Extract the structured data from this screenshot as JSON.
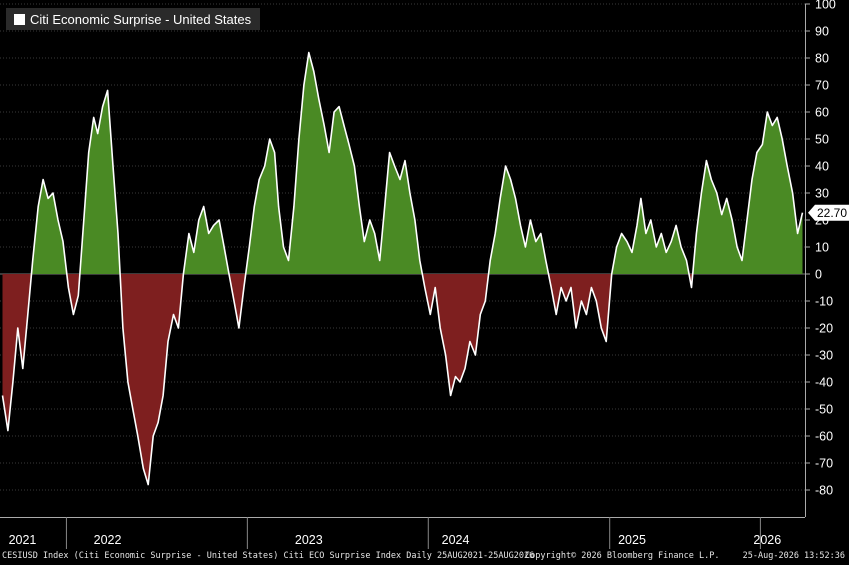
{
  "chart_data": {
    "type": "area",
    "series": [
      {
        "name": "Citi Economic Surprise - United States",
        "color": "#ffffff",
        "positive_fill": "#4a8a24",
        "negative_fill": "#7e1f1f",
        "points": [
          [
            "2021-08-25",
            -45
          ],
          [
            "2021-09-05",
            -58
          ],
          [
            "2021-09-15",
            -40
          ],
          [
            "2021-09-25",
            -20
          ],
          [
            "2021-10-05",
            -35
          ],
          [
            "2021-10-15",
            -15
          ],
          [
            "2021-10-25",
            5
          ],
          [
            "2021-11-05",
            25
          ],
          [
            "2021-11-15",
            35
          ],
          [
            "2021-11-25",
            28
          ],
          [
            "2021-12-05",
            30
          ],
          [
            "2021-12-15",
            20
          ],
          [
            "2021-12-25",
            12
          ],
          [
            "2022-01-05",
            -5
          ],
          [
            "2022-01-15",
            -15
          ],
          [
            "2022-01-25",
            -8
          ],
          [
            "2022-02-05",
            20
          ],
          [
            "2022-02-15",
            45
          ],
          [
            "2022-02-25",
            58
          ],
          [
            "2022-03-05",
            52
          ],
          [
            "2022-03-15",
            62
          ],
          [
            "2022-03-25",
            68
          ],
          [
            "2022-04-05",
            40
          ],
          [
            "2022-04-15",
            15
          ],
          [
            "2022-04-25",
            -20
          ],
          [
            "2022-05-05",
            -40
          ],
          [
            "2022-05-15",
            -50
          ],
          [
            "2022-05-25",
            -60
          ],
          [
            "2022-06-05",
            -72
          ],
          [
            "2022-06-15",
            -78
          ],
          [
            "2022-06-25",
            -60
          ],
          [
            "2022-07-05",
            -55
          ],
          [
            "2022-07-15",
            -45
          ],
          [
            "2022-07-25",
            -25
          ],
          [
            "2022-08-05",
            -15
          ],
          [
            "2022-08-15",
            -20
          ],
          [
            "2022-08-25",
            0
          ],
          [
            "2022-09-05",
            15
          ],
          [
            "2022-09-15",
            8
          ],
          [
            "2022-09-25",
            20
          ],
          [
            "2022-10-05",
            25
          ],
          [
            "2022-10-15",
            15
          ],
          [
            "2022-10-25",
            18
          ],
          [
            "2022-11-05",
            20
          ],
          [
            "2022-11-15",
            10
          ],
          [
            "2022-11-25",
            0
          ],
          [
            "2022-12-05",
            -10
          ],
          [
            "2022-12-15",
            -20
          ],
          [
            "2022-12-25",
            -5
          ],
          [
            "2023-01-05",
            10
          ],
          [
            "2023-01-15",
            25
          ],
          [
            "2023-01-25",
            35
          ],
          [
            "2023-02-05",
            40
          ],
          [
            "2023-02-15",
            50
          ],
          [
            "2023-02-25",
            45
          ],
          [
            "2023-03-05",
            25
          ],
          [
            "2023-03-15",
            10
          ],
          [
            "2023-03-25",
            5
          ],
          [
            "2023-04-05",
            25
          ],
          [
            "2023-04-15",
            50
          ],
          [
            "2023-04-25",
            70
          ],
          [
            "2023-05-05",
            82
          ],
          [
            "2023-05-15",
            75
          ],
          [
            "2023-05-25",
            65
          ],
          [
            "2023-06-05",
            55
          ],
          [
            "2023-06-15",
            45
          ],
          [
            "2023-06-25",
            60
          ],
          [
            "2023-07-05",
            62
          ],
          [
            "2023-07-15",
            55
          ],
          [
            "2023-07-25",
            48
          ],
          [
            "2023-08-05",
            40
          ],
          [
            "2023-08-15",
            25
          ],
          [
            "2023-08-25",
            12
          ],
          [
            "2023-09-05",
            20
          ],
          [
            "2023-09-15",
            15
          ],
          [
            "2023-09-25",
            5
          ],
          [
            "2023-10-05",
            25
          ],
          [
            "2023-10-15",
            45
          ],
          [
            "2023-10-25",
            40
          ],
          [
            "2023-11-05",
            35
          ],
          [
            "2023-11-15",
            42
          ],
          [
            "2023-11-25",
            30
          ],
          [
            "2023-12-05",
            20
          ],
          [
            "2023-12-15",
            5
          ],
          [
            "2023-12-25",
            -5
          ],
          [
            "2024-01-05",
            -15
          ],
          [
            "2024-01-15",
            -5
          ],
          [
            "2024-01-25",
            -20
          ],
          [
            "2024-02-05",
            -30
          ],
          [
            "2024-02-15",
            -45
          ],
          [
            "2024-02-25",
            -38
          ],
          [
            "2024-03-05",
            -40
          ],
          [
            "2024-03-15",
            -35
          ],
          [
            "2024-03-25",
            -25
          ],
          [
            "2024-04-05",
            -30
          ],
          [
            "2024-04-15",
            -15
          ],
          [
            "2024-04-25",
            -10
          ],
          [
            "2024-05-05",
            5
          ],
          [
            "2024-05-15",
            15
          ],
          [
            "2024-05-25",
            28
          ],
          [
            "2024-06-05",
            40
          ],
          [
            "2024-06-15",
            35
          ],
          [
            "2024-06-25",
            28
          ],
          [
            "2024-07-05",
            18
          ],
          [
            "2024-07-15",
            10
          ],
          [
            "2024-07-25",
            20
          ],
          [
            "2024-08-05",
            12
          ],
          [
            "2024-08-15",
            15
          ],
          [
            "2024-08-25",
            5
          ],
          [
            "2024-09-05",
            -5
          ],
          [
            "2024-09-15",
            -15
          ],
          [
            "2024-09-25",
            -5
          ],
          [
            "2024-10-05",
            -10
          ],
          [
            "2024-10-15",
            -5
          ],
          [
            "2024-10-25",
            -20
          ],
          [
            "2024-11-05",
            -10
          ],
          [
            "2024-11-15",
            -15
          ],
          [
            "2024-11-25",
            -5
          ],
          [
            "2024-12-05",
            -10
          ],
          [
            "2024-12-15",
            -20
          ],
          [
            "2024-12-25",
            -25
          ],
          [
            "2025-01-05",
            0
          ],
          [
            "2025-01-15",
            10
          ],
          [
            "2025-01-25",
            15
          ],
          [
            "2025-02-05",
            12
          ],
          [
            "2025-02-15",
            8
          ],
          [
            "2025-02-25",
            18
          ],
          [
            "2025-03-05",
            28
          ],
          [
            "2025-03-15",
            15
          ],
          [
            "2025-03-25",
            20
          ],
          [
            "2025-04-05",
            10
          ],
          [
            "2025-04-15",
            15
          ],
          [
            "2025-04-25",
            8
          ],
          [
            "2025-05-05",
            12
          ],
          [
            "2025-05-15",
            18
          ],
          [
            "2025-05-25",
            10
          ],
          [
            "2025-06-05",
            5
          ],
          [
            "2025-06-15",
            -5
          ],
          [
            "2025-06-25",
            15
          ],
          [
            "2025-07-05",
            30
          ],
          [
            "2025-07-15",
            42
          ],
          [
            "2025-07-25",
            35
          ],
          [
            "2025-08-05",
            30
          ],
          [
            "2025-08-15",
            22
          ],
          [
            "2025-08-25",
            28
          ],
          [
            "2025-09-05",
            20
          ],
          [
            "2025-09-15",
            10
          ],
          [
            "2025-09-25",
            5
          ],
          [
            "2025-10-05",
            20
          ],
          [
            "2025-10-15",
            35
          ],
          [
            "2025-10-25",
            45
          ],
          [
            "2025-11-05",
            48
          ],
          [
            "2025-11-15",
            60
          ],
          [
            "2025-11-25",
            55
          ],
          [
            "2025-12-05",
            58
          ],
          [
            "2025-12-15",
            50
          ],
          [
            "2025-12-25",
            40
          ],
          [
            "2026-01-05",
            30
          ],
          [
            "2026-01-15",
            15
          ],
          [
            "2026-01-25",
            22.7
          ]
        ]
      }
    ],
    "last_value_label": "22.70",
    "yaxis": {
      "side": "right",
      "ylim": [
        -90,
        100
      ],
      "ticks": [
        100,
        90,
        80,
        70,
        60,
        50,
        40,
        30,
        20,
        10,
        0,
        -10,
        -20,
        -30,
        -40,
        -50,
        -60,
        -70,
        -80
      ]
    },
    "xaxis": {
      "ticks": [
        {
          "label": "2021",
          "date": "2021-08-25"
        },
        {
          "label": "2022",
          "date": "2022-03-25"
        },
        {
          "label": "2023",
          "date": "2023-05-05"
        },
        {
          "label": "2024",
          "date": "2024-02-25"
        },
        {
          "label": "2025",
          "date": "2025-02-15"
        },
        {
          "label": "2026",
          "date": "2025-11-15"
        }
      ],
      "dividers": [
        "2022-01-01",
        "2023-01-01",
        "2024-01-01",
        "2025-01-01",
        "2025-11-01"
      ]
    },
    "xlim": [
      "2021-08-20",
      "2026-01-30"
    ],
    "grid": true,
    "legend": {
      "position": "top-left",
      "label": "Citi Economic Surprise - United States"
    }
  },
  "footer": {
    "left": "CESIUSD Index (Citi Economic Surprise - United States) Citi ECO Surprise Index Daily 25AUG2021-25AUG2026",
    "center": "Copyright© 2026 Bloomberg Finance L.P.",
    "right": "25-Aug-2026 13:52:36"
  }
}
